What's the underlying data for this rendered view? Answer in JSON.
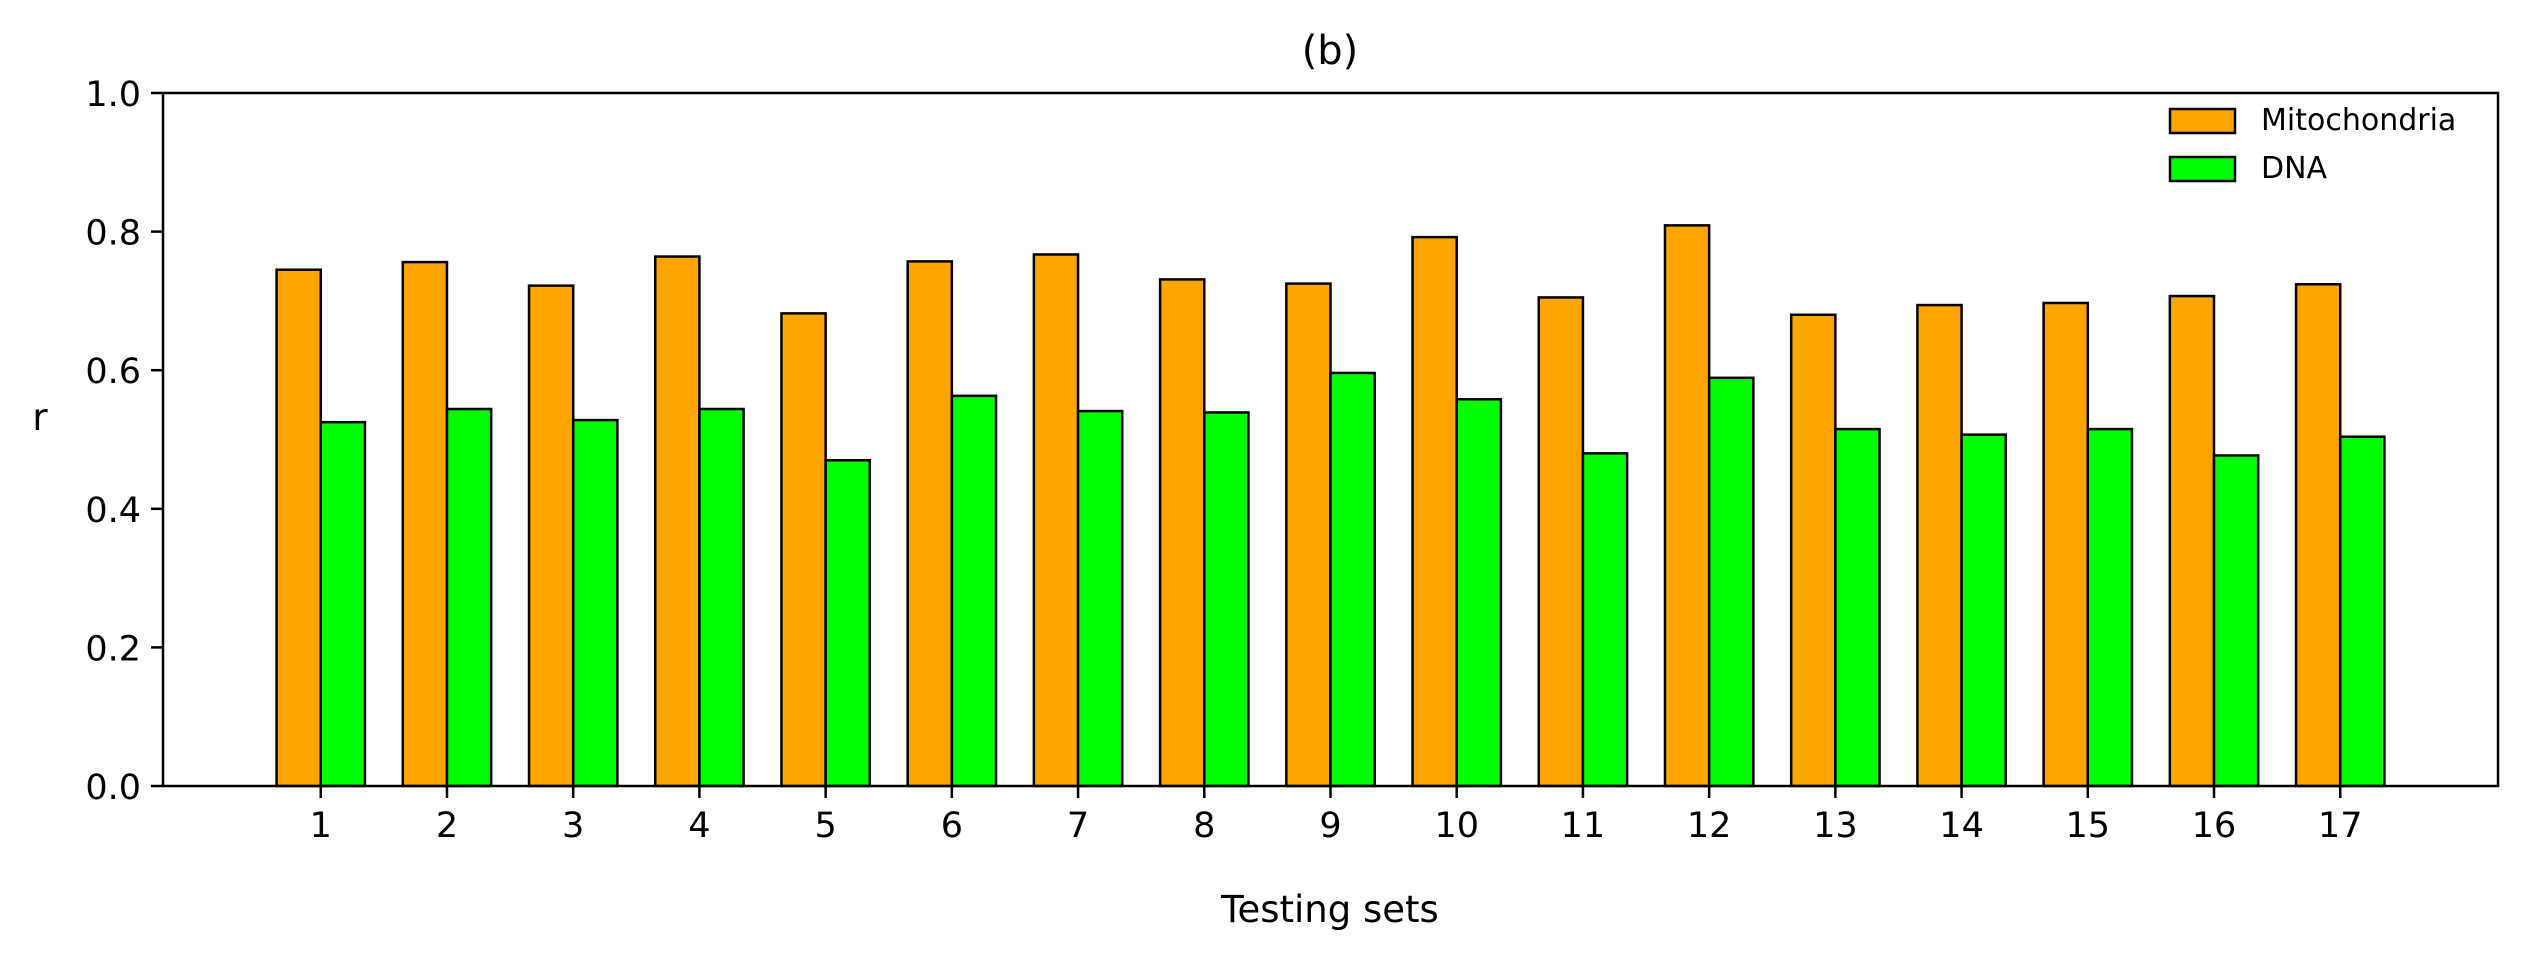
{
  "chart_data": {
    "type": "bar",
    "title": "(b)",
    "xlabel": "Testing sets",
    "ylabel": "r",
    "categories": [
      "1",
      "2",
      "3",
      "4",
      "5",
      "6",
      "7",
      "8",
      "9",
      "10",
      "11",
      "12",
      "13",
      "14",
      "15",
      "16",
      "17"
    ],
    "series": [
      {
        "name": "Mitochondria",
        "color": "#FFA500",
        "values": [
          0.745,
          0.756,
          0.722,
          0.764,
          0.682,
          0.757,
          0.767,
          0.731,
          0.725,
          0.792,
          0.705,
          0.809,
          0.68,
          0.694,
          0.697,
          0.707,
          0.724
        ]
      },
      {
        "name": "DNA",
        "color": "#00FF00",
        "values": [
          0.525,
          0.544,
          0.528,
          0.544,
          0.47,
          0.563,
          0.541,
          0.539,
          0.596,
          0.558,
          0.48,
          0.589,
          0.515,
          0.507,
          0.515,
          0.477,
          0.504
        ]
      }
    ],
    "ylim": [
      0,
      1.0
    ],
    "yticks": [
      "0.0",
      "0.2",
      "0.4",
      "0.6",
      "0.8",
      "1.0"
    ],
    "grid": false,
    "legend_position": "top-right",
    "bar_edge_color": "#000000"
  }
}
